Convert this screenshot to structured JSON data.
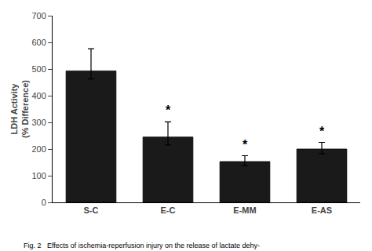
{
  "chart_data": {
    "type": "bar",
    "categories": [
      "S-C",
      "E-C",
      "E-MM",
      "E-AS"
    ],
    "values": [
      493,
      245,
      153,
      200
    ],
    "error_upper": [
      83,
      57,
      22,
      25
    ],
    "error_lower": [
      30,
      30,
      15,
      17
    ],
    "color": "#1a1a1a",
    "ylabel": "LDH Activity\n(% Difference)",
    "ylim": [
      0,
      700
    ],
    "yticks": [
      0,
      100,
      200,
      300,
      400,
      500,
      600,
      700
    ],
    "grid": false,
    "annotations": [
      {
        "category": "E-C",
        "text": "*"
      },
      {
        "category": "E-MM",
        "text": "*"
      },
      {
        "category": "E-AS",
        "text": "*"
      }
    ],
    "caption": "Fig. 2   Effects of ischemia-reperfusion injury on the release of lactate dehy-"
  }
}
